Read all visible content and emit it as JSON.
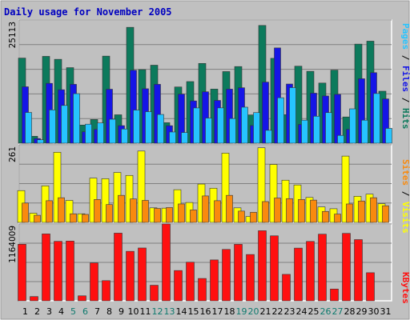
{
  "chart_data": [
    {
      "type": "bar",
      "title": "Daily usage for November 2005",
      "categories": [
        "1",
        "2",
        "3",
        "4",
        "5",
        "6",
        "7",
        "8",
        "9",
        "10",
        "11",
        "12",
        "13",
        "14",
        "15",
        "16",
        "17",
        "18",
        "19",
        "20",
        "21",
        "22",
        "23",
        "24",
        "25",
        "26",
        "27",
        "28",
        "29",
        "30",
        "31"
      ],
      "weekend_days": [
        "5",
        "6",
        "12",
        "13",
        "19",
        "20",
        "26",
        "27"
      ],
      "ymax_label": "25113",
      "ylim": [
        0,
        25113
      ],
      "grid": true,
      "series": [
        {
          "name": "Hits",
          "color": "#0c7a5c",
          "values": [
            17350,
            1410,
            17700,
            17100,
            15400,
            3700,
            4830,
            17750,
            5790,
            23620,
            15000,
            15900,
            4180,
            11460,
            12560,
            16260,
            11030,
            14600,
            15620,
            5770,
            24000,
            17300,
            5810,
            15700,
            14650,
            12260,
            14900,
            5350,
            20200,
            20800,
            10600
          ]
        },
        {
          "name": "Files",
          "color": "#1515e6",
          "values": [
            11500,
            950,
            12200,
            10900,
            12000,
            2330,
            2830,
            11000,
            3580,
            14860,
            11100,
            12000,
            3570,
            10000,
            8620,
            10480,
            8720,
            11020,
            11300,
            3600,
            12450,
            19420,
            12060,
            3820,
            10200,
            9630,
            9950,
            2830,
            13140,
            14380,
            9030
          ]
        },
        {
          "name": "Pages",
          "color": "#26c4ff",
          "values": [
            6270,
            700,
            6800,
            7700,
            10100,
            3880,
            4130,
            4890,
            2900,
            6760,
            6430,
            5860,
            2290,
            2180,
            7190,
            5130,
            7200,
            5030,
            7340,
            6240,
            2630,
            9270,
            11330,
            4700,
            5500,
            6240,
            1590,
            7010,
            4700,
            10130,
            3030
          ]
        }
      ]
    },
    {
      "type": "bar",
      "categories": [
        "1",
        "2",
        "3",
        "4",
        "5",
        "6",
        "7",
        "8",
        "9",
        "10",
        "11",
        "12",
        "13",
        "14",
        "15",
        "16",
        "17",
        "18",
        "19",
        "20",
        "21",
        "22",
        "23",
        "24",
        "25",
        "26",
        "27",
        "28",
        "29",
        "30",
        "31"
      ],
      "ymax_label": "261",
      "ylim": [
        0,
        261
      ],
      "grid": true,
      "series": [
        {
          "name": "Visits",
          "color": "#ffff00",
          "values": [
            107,
            31,
            123,
            236,
            74,
            29,
            149,
            147,
            168,
            158,
            240,
            49,
            48,
            110,
            67,
            129,
            115,
            233,
            49,
            20,
            251,
            195,
            142,
            126,
            84,
            52,
            46,
            223,
            88,
            95,
            63
          ]
        },
        {
          "name": "Sites",
          "color": "#f98a0e",
          "values": [
            65,
            24,
            73,
            83,
            29,
            27,
            77,
            60,
            91,
            79,
            74,
            47,
            50,
            62,
            42,
            89,
            73,
            91,
            38,
            34,
            70,
            82,
            80,
            77,
            75,
            37,
            28,
            62,
            72,
            83,
            56
          ]
        }
      ]
    },
    {
      "type": "bar",
      "categories": [
        "1",
        "2",
        "3",
        "4",
        "5",
        "6",
        "7",
        "8",
        "9",
        "10",
        "11",
        "12",
        "13",
        "14",
        "15",
        "16",
        "17",
        "18",
        "19",
        "20",
        "21",
        "22",
        "23",
        "24",
        "25",
        "26",
        "27",
        "28",
        "29",
        "30",
        "31"
      ],
      "ymax_label": "1164009",
      "ylim": [
        0,
        1164009
      ],
      "grid": true,
      "series": [
        {
          "name": "KBytes",
          "color": "#ff1010",
          "values": [
            857220,
            64430,
            1013900,
            901170,
            905380,
            75370,
            574700,
            305720,
            1025500,
            750000,
            800490,
            235860,
            1164009,
            458790,
            585380,
            338560,
            619570,
            779080,
            855970,
            701660,
            1062060,
            984770,
            400750,
            798780,
            900000,
            1010000,
            178490,
            1022000,
            927500,
            425760,
            0
          ]
        }
      ]
    }
  ],
  "colors": {
    "background": "#c0c0c0",
    "frame_outer": "#ffffff",
    "title": "#0000c0",
    "grid": "#808080",
    "weekday_label": "#000000",
    "weekend_label": "#0e7a6e"
  }
}
